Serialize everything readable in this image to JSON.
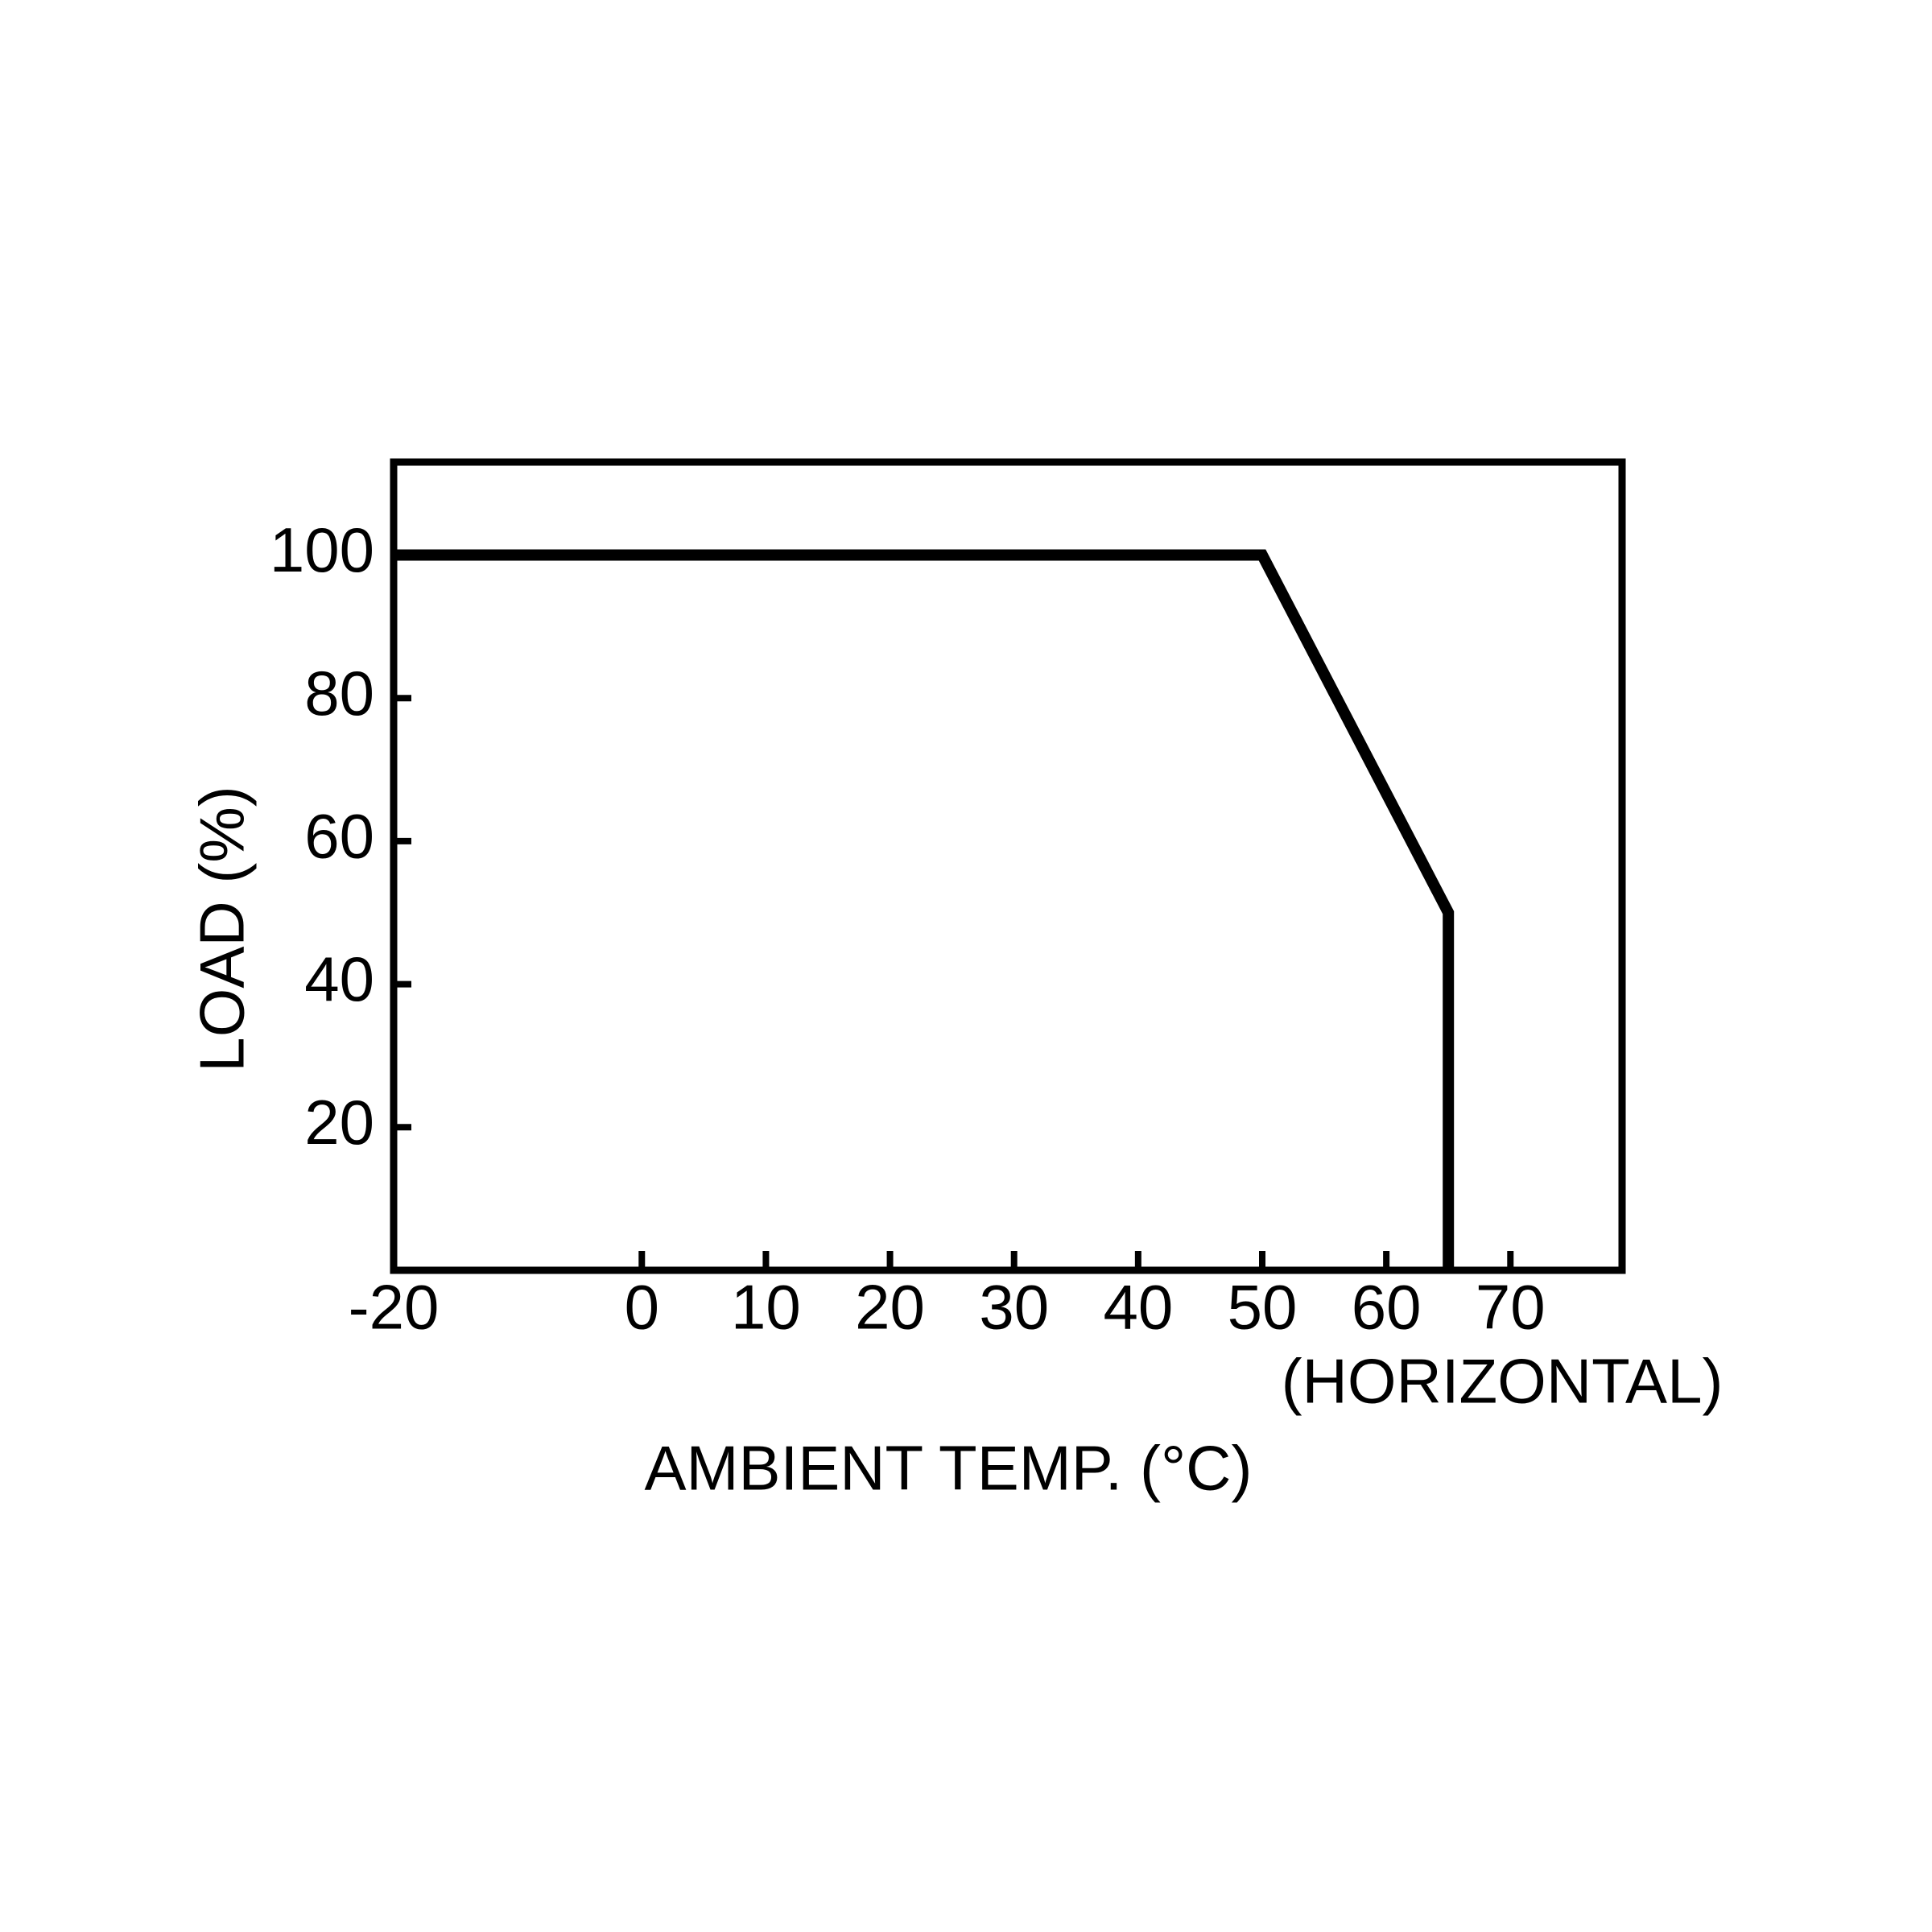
{
  "chart_data": {
    "type": "line",
    "x_label": "AMBIENT TEMP. (°C)",
    "y_label": "LOAD (%)",
    "annotation": "(HORIZONTAL)",
    "x": [
      -20,
      50,
      65,
      65
    ],
    "series": [
      {
        "color": "#000000",
        "values": [
          100,
          100,
          50,
          0
        ]
      }
    ],
    "xlim": [
      -20,
      79
    ],
    "ylim": [
      0,
      113
    ],
    "xticks": [
      -20,
      0,
      10,
      20,
      30,
      40,
      50,
      60,
      70
    ],
    "yticks": [
      20,
      40,
      60,
      80,
      100
    ],
    "grid": false
  }
}
